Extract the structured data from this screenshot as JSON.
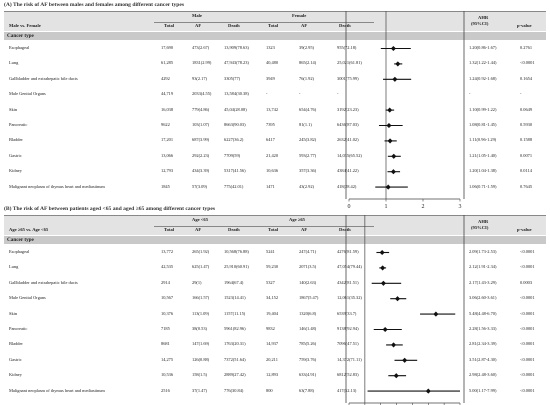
{
  "panelA": {
    "title": "(A) The risk of AF between males and females among different cancer types",
    "header": {
      "first_col": "Male vs. Female",
      "male_group": "Male",
      "female_group": "Female",
      "cols": [
        "Total",
        "AF",
        "Death",
        "Total",
        "AF",
        "Death"
      ],
      "ahr_line1": "AHR",
      "ahr_line2": "(95%CI)",
      "pvalue": "p-value",
      "cancer_type": "Cancer type"
    },
    "rows": [
      {
        "name": "Esophageal",
        "m_total": "17,690",
        "m_af": "473(2.67)",
        "m_death": "13,909(78.63)",
        "f_total": "1323",
        "f_af": "39(2.95)",
        "f_death": "955(72.18)",
        "ahr": "1.20(0.86-1.67)",
        "p": "0.2761"
      },
      {
        "name": "Lung",
        "m_total": "61,285",
        "m_af": "1831(2.99)",
        "m_death": "47,943(78.23)",
        "f_total": "40,480",
        "f_af": "865(2.14)",
        "f_death": "25,021(61.81)",
        "ahr": "1.32(1.22-1.44)",
        "p": "<0.0001"
      },
      {
        "name": "Gallbladder and extrahepatic bile ducts",
        "m_total": "4292",
        "m_af": "93(2.17)",
        "m_death": "3305(77)",
        "f_total": "3949",
        "f_af": "76(1.92)",
        "f_death": "3001(75.99)",
        "ahr": "1.24(0.92-1.68)",
        "p": "0.1654"
      },
      {
        "name": "Male Genital Organs",
        "m_total": "44,719",
        "m_af": "2033(4.55)",
        "m_death": "13,584(30.38)",
        "f_total": "-",
        "f_af": "-",
        "f_death": "-",
        "ahr": "-",
        "p": "-"
      },
      {
        "name": "Skin",
        "m_total": "16,038",
        "m_af": "779(4.86)",
        "m_death": "45,04(28.08)",
        "f_total": "13,742",
        "f_af": "654(4.76)",
        "f_death": "3192(23.23)",
        "ahr": "1.10(0.99-1.22)",
        "p": "0.0649"
      },
      {
        "name": "Pancreatic",
        "m_total": "9622",
        "m_af": "103(1.07)",
        "m_death": "8663(90.03)",
        "f_total": "7395",
        "f_af": "81(1.1)",
        "f_death": "6436(87.03)",
        "ahr": "1.08(0.81-1.45)",
        "p": "0.5930"
      },
      {
        "name": "Bladder",
        "m_total": "17,201",
        "m_af": "687(3.99)",
        "m_death": "6227(36.2)",
        "f_total": "6417",
        "f_af": "245(3.82)",
        "f_death": "2632(41.02)",
        "ahr": "1.11(0.96-1.29)",
        "p": "0.1588"
      },
      {
        "name": "Gastric",
        "m_total": "13,066",
        "m_af": "292(2.23)",
        "m_death": "7709(59)",
        "f_total": "21,420",
        "f_af": "593(2.77)",
        "f_death": "14,035(65.52)",
        "ahr": "1.21(1.05-1.40)",
        "p": "0.0071"
      },
      {
        "name": "Kidney",
        "m_total": "12,793",
        "m_af": "434(3.39)",
        "m_death": "5317(41.56)",
        "f_total": "10,636",
        "f_af": "357(3.36)",
        "f_death": "4384(41.22)",
        "ahr": "1.20(1.04-1.38)",
        "p": "0.0114"
      },
      {
        "name": "Malignant neoplasm of thymus heart and mediastinum",
        "m_total": "1845",
        "m_af": "57(3.09)",
        "m_death": "775(42.01)",
        "f_total": "1471",
        "f_af": "43(2.92)",
        "f_death": "418(28.42)",
        "ahr": "1.06(0.71-1.59)",
        "p": "0.7645"
      }
    ],
    "forest": {
      "estimates": [
        1.2,
        1.32,
        1.24,
        null,
        1.1,
        1.08,
        1.11,
        1.21,
        1.2,
        1.06
      ],
      "lower": [
        0.86,
        1.22,
        0.92,
        null,
        0.99,
        0.81,
        0.96,
        1.05,
        1.04,
        0.71
      ],
      "upper": [
        1.67,
        1.44,
        1.68,
        null,
        1.22,
        1.45,
        1.29,
        1.4,
        1.38,
        1.59
      ],
      "xlim": [
        0,
        3
      ],
      "ticks": [
        "0",
        "1",
        "2",
        "3"
      ]
    }
  },
  "panelB": {
    "title": "(B) The risk of AF between patients aged <65 and aged ≥65 among different cancer types",
    "header": {
      "first_col": "Age ≥65 vs. Age <65",
      "young_group": "Age <65",
      "old_group": "Age ≥65",
      "cols": [
        "Total",
        "AF",
        "Death",
        "Total",
        "AF",
        "Death"
      ],
      "ahr_line1": "AHR",
      "ahr_line2": "(95%CI)",
      "pvalue": "p-value",
      "cancer_type": "Cancer type"
    },
    "rows": [
      {
        "name": "Esophageal",
        "y_total": "13,772",
        "y_af": "265(1.92)",
        "y_death": "10,568(76.88)",
        "o_total": "5241",
        "o_af": "247(4.71)",
        "o_death": "4276(81.59)",
        "ahr": "2.09(1.73-2.53)",
        "p": "<0.0001"
      },
      {
        "name": "Lung",
        "y_total": "42,535",
        "y_af": "625(1.47)",
        "y_death": "25,910(60.91)",
        "o_total": "59,230",
        "o_af": "2071(3.5)",
        "o_death": "47,054(79.44)",
        "ahr": "2.12(1.91-2.34)",
        "p": "<0.0001"
      },
      {
        "name": "Gallbladder and extrahepatic bile ducts",
        "y_total": "2914",
        "y_af": "29(1)",
        "y_death": "1964(67.4)",
        "o_total": "5327",
        "o_af": "140(2.63)",
        "o_death": "4342(81.51)",
        "ahr": "2.17(1.43-3.29)",
        "p": "0.0003"
      },
      {
        "name": "Male Genital Organs",
        "y_total": "10,567",
        "y_af": "166(1.57)",
        "y_death": "1523(14.41)",
        "o_total": "34,152",
        "o_af": "1867(5.47)",
        "o_death": "12,061(35.32)",
        "ahr": "3.06(2.60-3.61)",
        "p": "<0.0001"
      },
      {
        "name": "Skin",
        "y_total": "10,376",
        "y_af": "113(1.09)",
        "y_death": "1157(11.15)",
        "o_total": "19,404",
        "o_af": "1320(6.8)",
        "o_death": "6539(33.7)",
        "ahr": "5.48(4.48-6.70)",
        "p": "<0.0001"
      },
      {
        "name": "Pancreatic",
        "y_total": "7185",
        "y_af": "38(0.53)",
        "y_death": "5961(82.96)",
        "o_total": "9832",
        "o_af": "146(1.48)",
        "o_death": "9138(92.94)",
        "ahr": "2.28(1.56-3.33)",
        "p": "<0.0001"
      },
      {
        "name": "Bladder",
        "y_total": "8681",
        "y_af": "147(1.69)",
        "y_death": "1763(20.31)",
        "o_total": "14,937",
        "o_af": "785(5.26)",
        "o_death": "7096(47.51)",
        "ahr": "2.81(2.34-3.39)",
        "p": "<0.0001"
      },
      {
        "name": "Gastric",
        "y_total": "14,275",
        "y_af": "126(0.88)",
        "y_death": "7372(51.64)",
        "o_total": "20,211",
        "o_af": "759(3.76)",
        "o_death": "14,372(71.11)",
        "ahr": "3.51(2.87-4.30)",
        "p": "<0.0001"
      },
      {
        "name": "Kidney",
        "y_total": "10,536",
        "y_af": "158(1.5)",
        "y_death": "2889(27.42)",
        "o_total": "12,893",
        "o_af": "633(4.91)",
        "o_death": "6812(52.83)",
        "ahr": "2.98(2.48-3.60)",
        "p": "<0.0001"
      },
      {
        "name": "Malignant neoplasm of thymus heart and mediastinum",
        "y_total": "2516",
        "y_af": "37(1.47)",
        "y_death": "776(30.84)",
        "o_total": "800",
        "o_af": "63(7.88)",
        "o_death": "417(52.13)",
        "ahr": "5.00(1.17-7.99)",
        "p": "<0.0001"
      }
    ],
    "forest": {
      "estimates": [
        2.09,
        2.12,
        2.17,
        3.06,
        5.48,
        2.28,
        2.81,
        3.51,
        2.98,
        5.0
      ],
      "lower": [
        1.73,
        1.91,
        1.43,
        2.6,
        4.48,
        1.56,
        2.34,
        2.87,
        2.48,
        1.17
      ],
      "upper": [
        2.53,
        2.34,
        3.29,
        3.61,
        6.7,
        3.33,
        3.39,
        4.3,
        3.6,
        7.99
      ],
      "xlim": [
        0,
        7
      ],
      "ticks": [
        "0",
        "1",
        "2",
        "3",
        "4",
        "5",
        "6",
        "7"
      ]
    }
  },
  "colors": {
    "header_bg": "#e3e3e3",
    "group_bar": "#c9c9c9",
    "marker": "#111111"
  }
}
